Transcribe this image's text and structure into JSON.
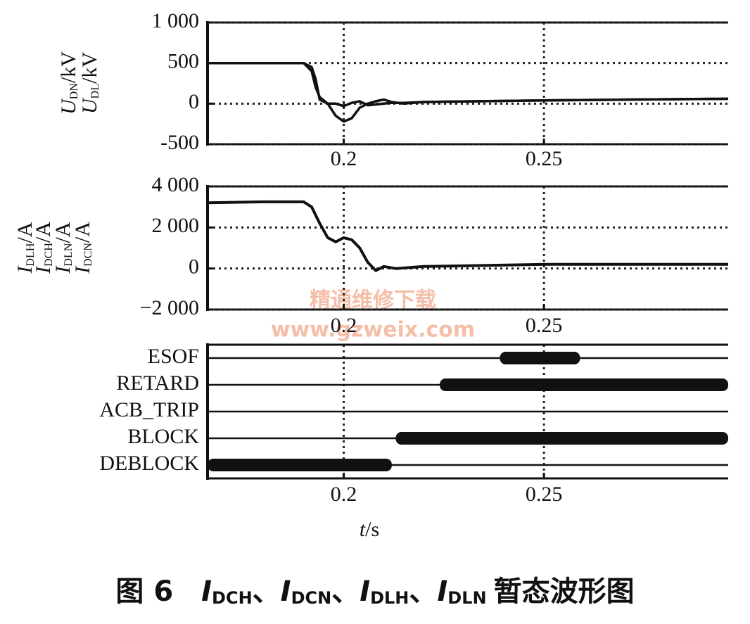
{
  "chart_data": [
    {
      "type": "line",
      "xlim": [
        0.166,
        0.296
      ],
      "xticks": [
        0.2,
        0.25
      ],
      "ylim": [
        -500,
        1000
      ],
      "yticks": [
        -500,
        0,
        500,
        {
          "value": 1000,
          "label": "1 000"
        }
      ],
      "grid": true,
      "ylabels": [
        {
          "main": "U",
          "sub": "DN",
          "rest": "/kV"
        },
        {
          "main": "U",
          "sub": "DL",
          "rest": "/kV"
        }
      ],
      "x": [
        0.166,
        0.19,
        0.192,
        0.193,
        0.194,
        0.196,
        0.198,
        0.2,
        0.202,
        0.204,
        0.206,
        0.208,
        0.21,
        0.212,
        0.215,
        0.22,
        0.25,
        0.296
      ],
      "series": [
        {
          "color": "#111111",
          "values": [
            500,
            500,
            450,
            300,
            50,
            0,
            -150,
            -220,
            -180,
            -50,
            0,
            30,
            50,
            20,
            0,
            20,
            40,
            60
          ]
        },
        {
          "color": "#111111",
          "values": [
            500,
            500,
            400,
            200,
            80,
            0,
            0,
            -30,
            10,
            30,
            -20,
            -10,
            0,
            10,
            10,
            20,
            40,
            60
          ]
        }
      ]
    },
    {
      "type": "line",
      "xlim": [
        0.166,
        0.296
      ],
      "xticks": [
        0.2,
        0.25
      ],
      "ylim": [
        -2000,
        4000
      ],
      "yticks": [
        {
          "value": -2000,
          "label": "−2 000"
        },
        0,
        {
          "value": 2000,
          "label": "2 000"
        },
        {
          "value": 4000,
          "label": "4 000"
        }
      ],
      "grid": true,
      "ylabels": [
        {
          "main": "I",
          "sub": "DLH",
          "rest": "/A"
        },
        {
          "main": "I",
          "sub": "DCH",
          "rest": "/A"
        },
        {
          "main": "I",
          "sub": "DLN",
          "rest": "/A"
        },
        {
          "main": "I",
          "sub": "DCN",
          "rest": "/A"
        }
      ],
      "x": [
        0.166,
        0.18,
        0.19,
        0.192,
        0.194,
        0.196,
        0.198,
        0.2,
        0.202,
        0.204,
        0.206,
        0.208,
        0.21,
        0.213,
        0.22,
        0.25,
        0.296
      ],
      "series": [
        {
          "color": "#111111",
          "values": [
            3200,
            3250,
            3250,
            3000,
            2200,
            1500,
            1300,
            1500,
            1400,
            1000,
            300,
            -100,
            100,
            0,
            100,
            200,
            200
          ]
        }
      ]
    },
    {
      "type": "timeline",
      "xlim": [
        0.166,
        0.296
      ],
      "xticks": [
        0.2,
        0.25
      ],
      "grid": true,
      "categories": [
        "ESOF",
        "RETARD",
        "ACB_TRIP",
        "BLOCK",
        "DEBLOCK"
      ],
      "intervals": [
        [
          0.239,
          0.259
        ],
        [
          0.224,
          0.296
        ],
        null,
        [
          0.213,
          0.296
        ],
        [
          0.166,
          0.212
        ]
      ],
      "color": "#111111",
      "xlabel": {
        "var": "t",
        "unit": "/s"
      }
    }
  ],
  "watermark": {
    "text": "精通维修下载",
    "url": "www.gzweix.com"
  },
  "caption": {
    "figure": "图 6",
    "terms": [
      {
        "main": "I",
        "sub": "DCH"
      },
      {
        "main": "I",
        "sub": "DCN"
      },
      {
        "main": "I",
        "sub": "DLH"
      },
      {
        "main": "I",
        "sub": "DLN"
      }
    ],
    "separator": "、",
    "tail": "暂态波形图"
  }
}
